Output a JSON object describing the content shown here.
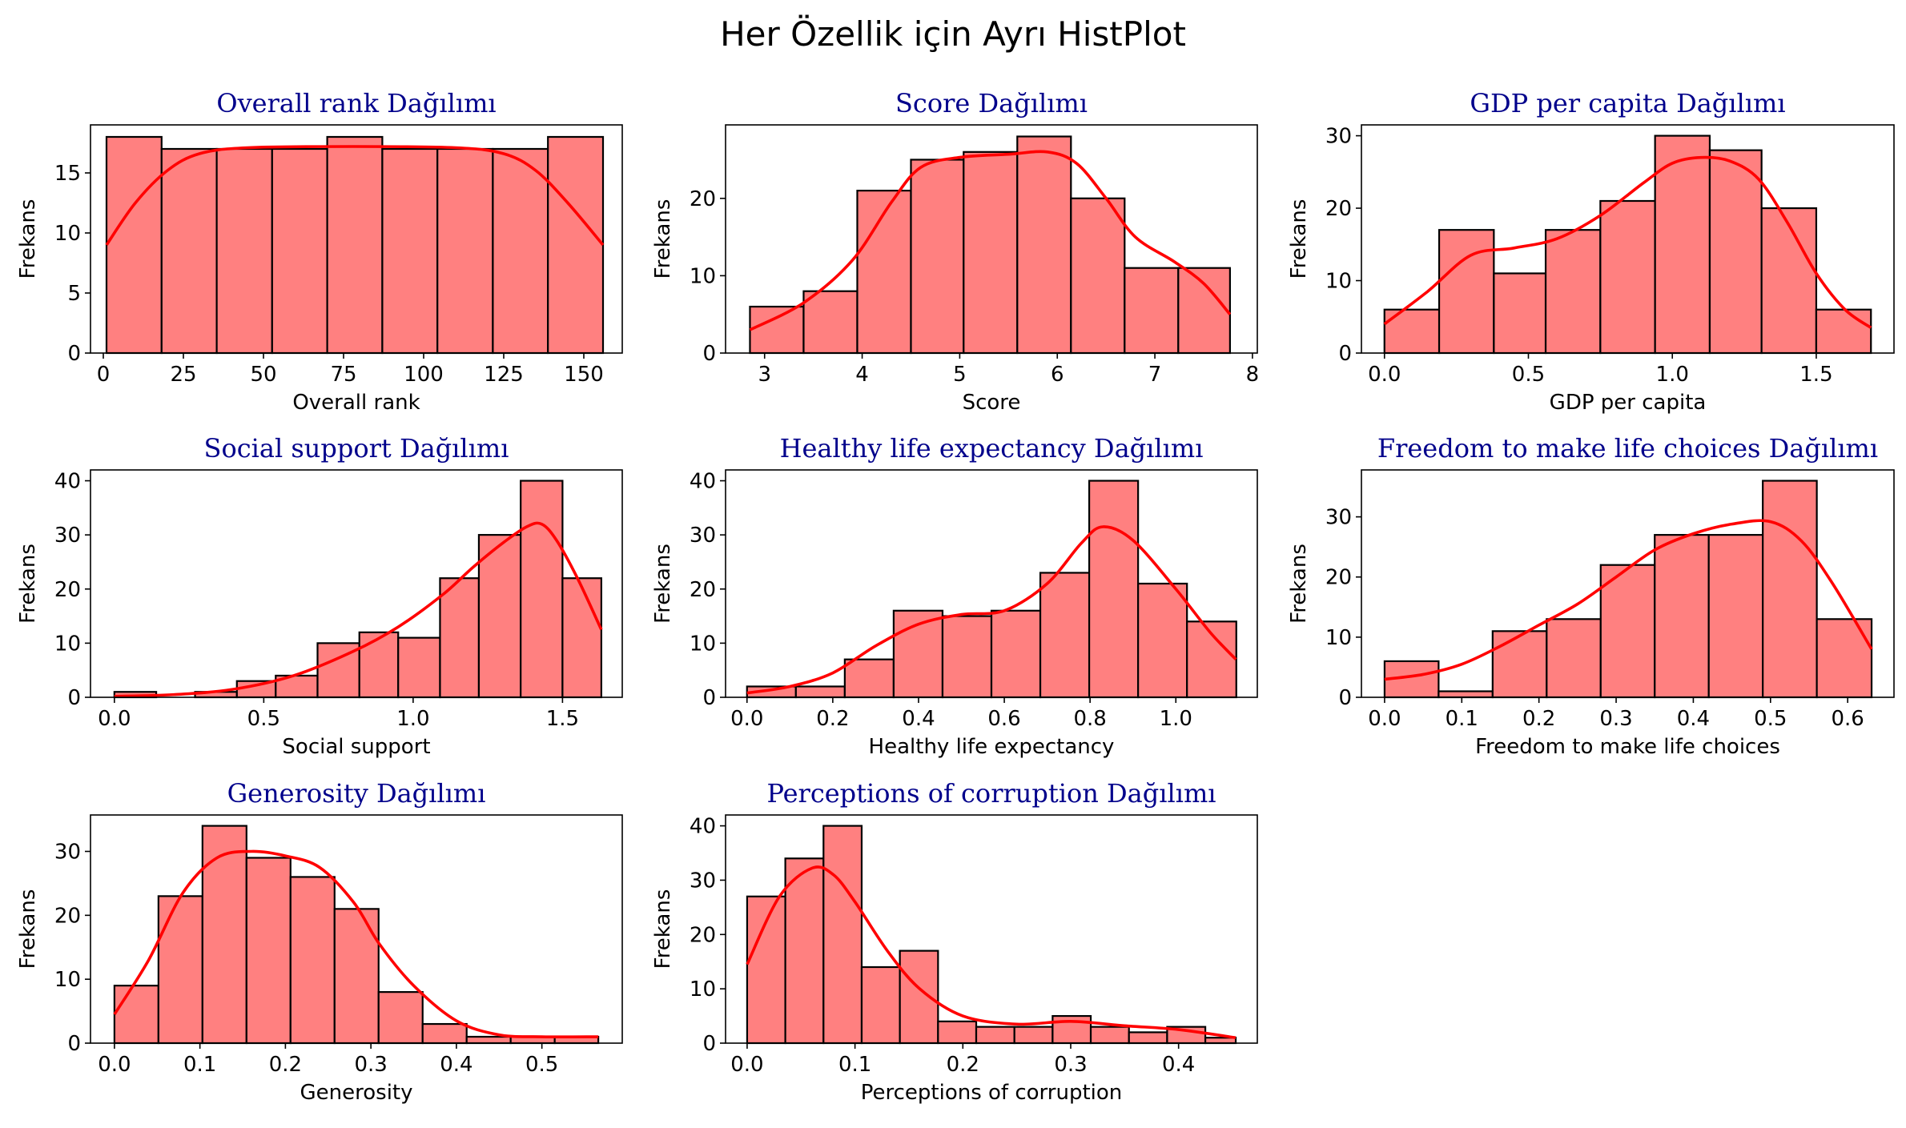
{
  "suptitle": "Her Özellik için Ayrı HistPlot",
  "colors": {
    "bar_fill": "#ff8080",
    "bar_edge": "#000000",
    "kde_line": "#ff0000",
    "title": "#00008b"
  },
  "chart_data": [
    {
      "type": "bar",
      "title": "Overall rank Dağılımı",
      "xlabel": "Overall rank",
      "ylabel": "Frekans",
      "xlim": [
        -4,
        162
      ],
      "ylim": [
        0,
        19
      ],
      "xticks": [
        0,
        25,
        50,
        75,
        100,
        125,
        150
      ],
      "xtick_labels": [
        "0",
        "25",
        "50",
        "75",
        "100",
        "125",
        "150"
      ],
      "yticks": [
        0,
        5,
        10,
        15
      ],
      "ytick_labels": [
        "0",
        "5",
        "10",
        "15"
      ],
      "bin_edges": [
        1,
        18.2,
        35.4,
        52.7,
        69.9,
        87.1,
        104.3,
        121.6,
        138.8,
        156
      ],
      "counts": [
        18,
        17,
        17,
        17,
        18,
        17,
        17,
        17,
        18
      ],
      "kde": [
        [
          1,
          9
        ],
        [
          10,
          12.5
        ],
        [
          20,
          15.2
        ],
        [
          30,
          16.6
        ],
        [
          45,
          17.1
        ],
        [
          78,
          17.2
        ],
        [
          110,
          17.1
        ],
        [
          125,
          16.6
        ],
        [
          135,
          15.2
        ],
        [
          145,
          12.5
        ],
        [
          156,
          9
        ]
      ]
    },
    {
      "type": "bar",
      "title": "Score Dağılımı",
      "xlabel": "Score",
      "ylabel": "Frekans",
      "xlim": [
        2.6,
        8.05
      ],
      "ylim": [
        0,
        29.5
      ],
      "xticks": [
        3,
        4,
        5,
        6,
        7,
        8
      ],
      "xtick_labels": [
        "3",
        "4",
        "5",
        "6",
        "7",
        "8"
      ],
      "yticks": [
        0,
        10,
        20
      ],
      "ytick_labels": [
        "0",
        "10",
        "20"
      ],
      "bin_edges": [
        2.85,
        3.4,
        3.95,
        4.5,
        5.04,
        5.59,
        6.14,
        6.69,
        7.24,
        7.77
      ],
      "counts": [
        6,
        8,
        21,
        25,
        26,
        28,
        20,
        11,
        11
      ],
      "kde": [
        [
          2.85,
          3
        ],
        [
          3.4,
          6.5
        ],
        [
          3.9,
          12
        ],
        [
          4.3,
          19.5
        ],
        [
          4.6,
          24
        ],
        [
          5.0,
          25.3
        ],
        [
          5.5,
          25.7
        ],
        [
          5.9,
          26
        ],
        [
          6.2,
          24.5
        ],
        [
          6.5,
          20
        ],
        [
          6.8,
          15
        ],
        [
          7.2,
          11.8
        ],
        [
          7.5,
          9
        ],
        [
          7.77,
          5
        ]
      ]
    },
    {
      "type": "bar",
      "title": "GDP per capita Dağılımı",
      "xlabel": "GDP per capita",
      "ylabel": "Frekans",
      "xlim": [
        -0.08,
        1.77
      ],
      "ylim": [
        0,
        31.5
      ],
      "xticks": [
        0.0,
        0.5,
        1.0,
        1.5
      ],
      "xtick_labels": [
        "0.0",
        "0.5",
        "1.0",
        "1.5"
      ],
      "yticks": [
        0,
        10,
        20,
        30
      ],
      "ytick_labels": [
        "0",
        "10",
        "20",
        "30"
      ],
      "bin_edges": [
        0,
        0.19,
        0.38,
        0.56,
        0.75,
        0.94,
        1.13,
        1.31,
        1.5,
        1.69
      ],
      "counts": [
        6,
        17,
        11,
        17,
        21,
        30,
        28,
        20,
        6
      ],
      "kde": [
        [
          0,
          4
        ],
        [
          0.15,
          8.5
        ],
        [
          0.3,
          13.5
        ],
        [
          0.45,
          14.5
        ],
        [
          0.6,
          15.8
        ],
        [
          0.75,
          19
        ],
        [
          0.9,
          23.5
        ],
        [
          1.0,
          26.2
        ],
        [
          1.1,
          27
        ],
        [
          1.2,
          26.5
        ],
        [
          1.3,
          24
        ],
        [
          1.4,
          18
        ],
        [
          1.5,
          11
        ],
        [
          1.6,
          6
        ],
        [
          1.69,
          3.5
        ]
      ]
    },
    {
      "type": "bar",
      "title": "Social support Dağılımı",
      "xlabel": "Social support",
      "ylabel": "Frekans",
      "xlim": [
        -0.08,
        1.7
      ],
      "ylim": [
        0,
        42
      ],
      "xticks": [
        0.0,
        0.5,
        1.0,
        1.5
      ],
      "xtick_labels": [
        "0.0",
        "0.5",
        "1.0",
        "1.5"
      ],
      "yticks": [
        0,
        10,
        20,
        30,
        40
      ],
      "ytick_labels": [
        "0",
        "10",
        "20",
        "30",
        "40"
      ],
      "bin_edges": [
        0,
        0.14,
        0.27,
        0.41,
        0.54,
        0.68,
        0.82,
        0.95,
        1.09,
        1.22,
        1.36,
        1.5,
        1.63
      ],
      "counts": [
        1,
        0,
        1,
        3,
        4,
        10,
        12,
        11,
        22,
        30,
        40,
        22
      ],
      "kde": [
        [
          0,
          0.2
        ],
        [
          0.2,
          0.5
        ],
        [
          0.4,
          1.5
        ],
        [
          0.6,
          4
        ],
        [
          0.8,
          8.5
        ],
        [
          0.95,
          13
        ],
        [
          1.1,
          19
        ],
        [
          1.2,
          24
        ],
        [
          1.3,
          28.5
        ],
        [
          1.38,
          31.5
        ],
        [
          1.43,
          32
        ],
        [
          1.48,
          29
        ],
        [
          1.55,
          22
        ],
        [
          1.63,
          12.5
        ]
      ]
    },
    {
      "type": "bar",
      "title": "Healthy life expectancy Dağılımı",
      "xlabel": "Healthy life expectancy",
      "ylabel": "Frekans",
      "xlim": [
        -0.05,
        1.19
      ],
      "ylim": [
        0,
        42
      ],
      "xticks": [
        0.0,
        0.2,
        0.4,
        0.6,
        0.8,
        1.0
      ],
      "xtick_labels": [
        "0.0",
        "0.2",
        "0.4",
        "0.6",
        "0.8",
        "1.0"
      ],
      "yticks": [
        0,
        10,
        20,
        30,
        40
      ],
      "ytick_labels": [
        "0",
        "10",
        "20",
        "30",
        "40"
      ],
      "bin_edges": [
        0,
        0.114,
        0.228,
        0.342,
        0.456,
        0.57,
        0.684,
        0.798,
        0.912,
        1.026,
        1.141
      ],
      "counts": [
        2,
        2,
        7,
        16,
        15,
        16,
        23,
        40,
        21,
        14
      ],
      "kde": [
        [
          0,
          0.8
        ],
        [
          0.1,
          2
        ],
        [
          0.2,
          4.5
        ],
        [
          0.3,
          9.5
        ],
        [
          0.4,
          13.5
        ],
        [
          0.5,
          15.3
        ],
        [
          0.6,
          16
        ],
        [
          0.7,
          21
        ],
        [
          0.78,
          28.5
        ],
        [
          0.83,
          31.5
        ],
        [
          0.9,
          29
        ],
        [
          1.0,
          20
        ],
        [
          1.08,
          12
        ],
        [
          1.14,
          7
        ]
      ]
    },
    {
      "type": "bar",
      "title": "Freedom to make life choices Dağılımı",
      "xlabel": "Freedom to make life choices",
      "ylabel": "Frekans",
      "xlim": [
        -0.03,
        0.66
      ],
      "ylim": [
        0,
        37.8
      ],
      "xticks": [
        0.0,
        0.1,
        0.2,
        0.3,
        0.4,
        0.5,
        0.6
      ],
      "xtick_labels": [
        "0.0",
        "0.1",
        "0.2",
        "0.3",
        "0.4",
        "0.5",
        "0.6"
      ],
      "yticks": [
        0,
        10,
        20,
        30
      ],
      "ytick_labels": [
        "0",
        "10",
        "20",
        "30"
      ],
      "bin_edges": [
        0,
        0.07,
        0.14,
        0.21,
        0.28,
        0.35,
        0.42,
        0.49,
        0.56,
        0.631
      ],
      "counts": [
        6,
        1,
        11,
        13,
        22,
        27,
        27,
        36,
        13
      ],
      "kde": [
        [
          0,
          3
        ],
        [
          0.05,
          3.8
        ],
        [
          0.1,
          5.5
        ],
        [
          0.15,
          8.5
        ],
        [
          0.2,
          12
        ],
        [
          0.25,
          15.5
        ],
        [
          0.3,
          20
        ],
        [
          0.35,
          24.5
        ],
        [
          0.4,
          27.2
        ],
        [
          0.45,
          28.8
        ],
        [
          0.5,
          29.2
        ],
        [
          0.54,
          26
        ],
        [
          0.58,
          19
        ],
        [
          0.631,
          8
        ]
      ]
    },
    {
      "type": "bar",
      "title": "Generosity Dağılımı",
      "xlabel": "Generosity",
      "ylabel": "Frekans",
      "xlim": [
        -0.028,
        0.594
      ],
      "ylim": [
        0,
        35.7
      ],
      "xticks": [
        0.0,
        0.1,
        0.2,
        0.3,
        0.4,
        0.5
      ],
      "xtick_labels": [
        "0.0",
        "0.1",
        "0.2",
        "0.3",
        "0.4",
        "0.5"
      ],
      "yticks": [
        0,
        10,
        20,
        30
      ],
      "ytick_labels": [
        "0",
        "10",
        "20",
        "30"
      ],
      "bin_edges": [
        0,
        0.0515,
        0.103,
        0.1545,
        0.206,
        0.2575,
        0.309,
        0.3605,
        0.412,
        0.4635,
        0.515,
        0.566
      ],
      "counts": [
        9,
        23,
        34,
        29,
        26,
        21,
        8,
        3,
        1,
        1,
        1
      ],
      "kde": [
        [
          0,
          4.5
        ],
        [
          0.04,
          13
        ],
        [
          0.08,
          23.5
        ],
        [
          0.12,
          29
        ],
        [
          0.16,
          30
        ],
        [
          0.2,
          29.3
        ],
        [
          0.24,
          27.5
        ],
        [
          0.28,
          22
        ],
        [
          0.31,
          15.5
        ],
        [
          0.35,
          9
        ],
        [
          0.4,
          3.5
        ],
        [
          0.45,
          1.3
        ],
        [
          0.5,
          1
        ],
        [
          0.566,
          1
        ]
      ]
    },
    {
      "type": "bar",
      "title": "Perceptions of corruption Dağılımı",
      "xlabel": "Perceptions of corruption",
      "ylabel": "Frekans",
      "xlim": [
        -0.02,
        0.473
      ],
      "ylim": [
        0,
        42
      ],
      "xticks": [
        0.0,
        0.1,
        0.2,
        0.3,
        0.4
      ],
      "xtick_labels": [
        "0.0",
        "0.1",
        "0.2",
        "0.3",
        "0.4"
      ],
      "yticks": [
        0,
        10,
        20,
        30,
        40
      ],
      "ytick_labels": [
        "0",
        "10",
        "20",
        "30",
        "40"
      ],
      "bin_edges": [
        0,
        0.0354,
        0.0708,
        0.1062,
        0.1416,
        0.177,
        0.2124,
        0.2478,
        0.2832,
        0.3186,
        0.354,
        0.3894,
        0.4248,
        0.453
      ],
      "counts": [
        27,
        34,
        40,
        14,
        17,
        4,
        3,
        3,
        5,
        3,
        2,
        3,
        1
      ],
      "kde": [
        [
          0,
          14.5
        ],
        [
          0.03,
          27
        ],
        [
          0.06,
          32.2
        ],
        [
          0.08,
          31
        ],
        [
          0.1,
          26
        ],
        [
          0.13,
          17
        ],
        [
          0.16,
          10
        ],
        [
          0.2,
          5
        ],
        [
          0.25,
          3.5
        ],
        [
          0.3,
          4
        ],
        [
          0.35,
          3.2
        ],
        [
          0.4,
          2.5
        ],
        [
          0.453,
          1
        ]
      ]
    }
  ]
}
